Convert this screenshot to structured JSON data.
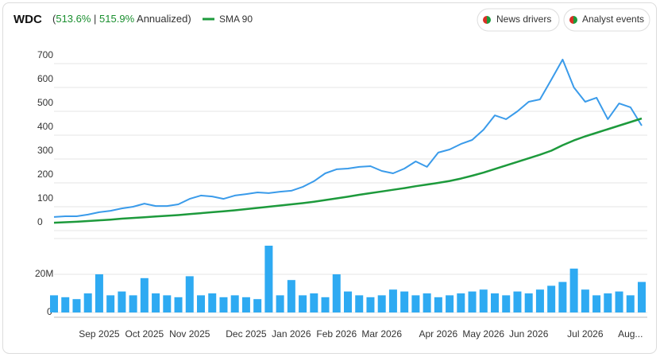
{
  "chart_data": {
    "type": "line",
    "title": "WDC",
    "returns": {
      "open": "(",
      "total": "513.6%",
      "sep": " | ",
      "annualized": "515.9%",
      "suffix": " Annualized)"
    },
    "buttons": [
      "News drivers",
      "Analyst events"
    ],
    "categories": [
      null,
      null,
      null,
      null,
      "Sep 2025",
      null,
      null,
      null,
      "Oct 2025",
      null,
      null,
      null,
      "Nov 2025",
      null,
      null,
      null,
      null,
      "Dec 2025",
      null,
      null,
      null,
      "Jan 2026",
      null,
      null,
      null,
      "Feb 2026",
      null,
      null,
      null,
      "Mar 2026",
      null,
      null,
      null,
      null,
      "Apr 2026",
      null,
      null,
      null,
      "May 2026",
      null,
      null,
      null,
      "Jun 2026",
      null,
      null,
      null,
      null,
      "Jul 2026",
      null,
      null,
      null,
      "Aug...",
      null
    ],
    "series": [
      {
        "color": "#3a9bea",
        "values": [
          57,
          60,
          60,
          67,
          77,
          83,
          93,
          100,
          113,
          103,
          103,
          110,
          133,
          147,
          143,
          133,
          147,
          153,
          160,
          157,
          163,
          167,
          183,
          207,
          240,
          257,
          260,
          267,
          270,
          250,
          240,
          260,
          290,
          267,
          327,
          340,
          363,
          380,
          423,
          483,
          467,
          500,
          540,
          550,
          633,
          717,
          600,
          540,
          557,
          467,
          533,
          517,
          440
        ]
      },
      {
        "name": "SMA 90",
        "color": "#1d9a3c",
        "values": [
          33,
          35,
          37,
          40,
          43,
          46,
          50,
          53,
          56,
          59,
          62,
          65,
          69,
          73,
          77,
          81,
          85,
          90,
          95,
          100,
          105,
          110,
          115,
          121,
          128,
          135,
          142,
          150,
          157,
          164,
          171,
          178,
          186,
          193,
          200,
          208,
          218,
          230,
          243,
          258,
          273,
          288,
          303,
          318,
          335,
          358,
          378,
          395,
          410,
          425,
          440,
          455,
          470
        ]
      },
      {
        "type": "bar",
        "axis": "y2",
        "color": "#2eaaf2",
        "values": [
          9000000,
          8000000,
          7000000,
          10000000,
          20000000,
          9000000,
          11000000,
          9000000,
          18000000,
          10000000,
          9000000,
          8000000,
          19000000,
          9000000,
          10000000,
          8000000,
          9000000,
          8000000,
          7000000,
          35000000,
          9000000,
          17000000,
          9000000,
          10000000,
          8000000,
          20000000,
          11000000,
          9000000,
          8000000,
          9000000,
          12000000,
          11000000,
          9000000,
          10000000,
          8000000,
          9000000,
          10000000,
          11000000,
          12000000,
          10000000,
          9000000,
          11000000,
          10000000,
          12000000,
          14000000,
          16000000,
          23000000,
          12000000,
          9000000,
          10000000,
          11000000,
          9000000,
          16000000
        ]
      }
    ],
    "ylim": [
      0,
      760
    ],
    "yticks": [
      0,
      100,
      200,
      300,
      400,
      500,
      600,
      700
    ],
    "y2lim": [
      0,
      40000000
    ],
    "y2ticks": [
      0,
      {
        "value": 20000000,
        "label": "20M"
      }
    ],
    "grid": true
  }
}
